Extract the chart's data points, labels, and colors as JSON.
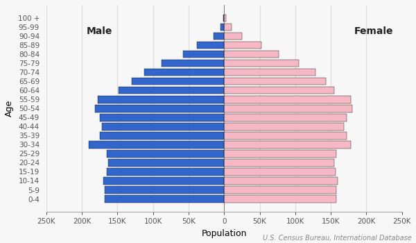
{
  "age_groups": [
    "0-4",
    "5-9",
    "10-14",
    "15-19",
    "20-24",
    "25-29",
    "30-34",
    "35-39",
    "40-44",
    "45-49",
    "50-54",
    "55-59",
    "60-64",
    "65-69",
    "70-74",
    "75-79",
    "80-84",
    "85-89",
    "90-94",
    "95-99",
    "100 +"
  ],
  "male": [
    168000,
    168000,
    170000,
    165000,
    163000,
    165000,
    190000,
    175000,
    172000,
    175000,
    182000,
    178000,
    148000,
    130000,
    112000,
    88000,
    58000,
    38000,
    15000,
    5500,
    1200
  ],
  "female": [
    158000,
    158000,
    160000,
    157000,
    155000,
    158000,
    178000,
    172000,
    168000,
    172000,
    180000,
    178000,
    155000,
    143000,
    128000,
    105000,
    77000,
    52000,
    25000,
    10000,
    2200
  ],
  "male_color": "#3366CC",
  "female_color": "#F5B8C4",
  "bar_edge_color": "#111111",
  "bar_edge_width": 0.3,
  "background_color": "#f7f7f7",
  "xlabel": "Population",
  "ylabel": "Age",
  "male_label": "Male",
  "female_label": "Female",
  "xlim": 250000,
  "tick_labels": [
    "250K",
    "200K",
    "150K",
    "100K",
    "50K",
    "0",
    "50K",
    "100K",
    "150K",
    "200K",
    "250K"
  ],
  "source_text": "U.S. Census Bureau, International Database",
  "label_fontsize": 9,
  "tick_fontsize": 7.5,
  "source_fontsize": 7,
  "male_label_fontsize": 10,
  "female_label_fontsize": 10
}
